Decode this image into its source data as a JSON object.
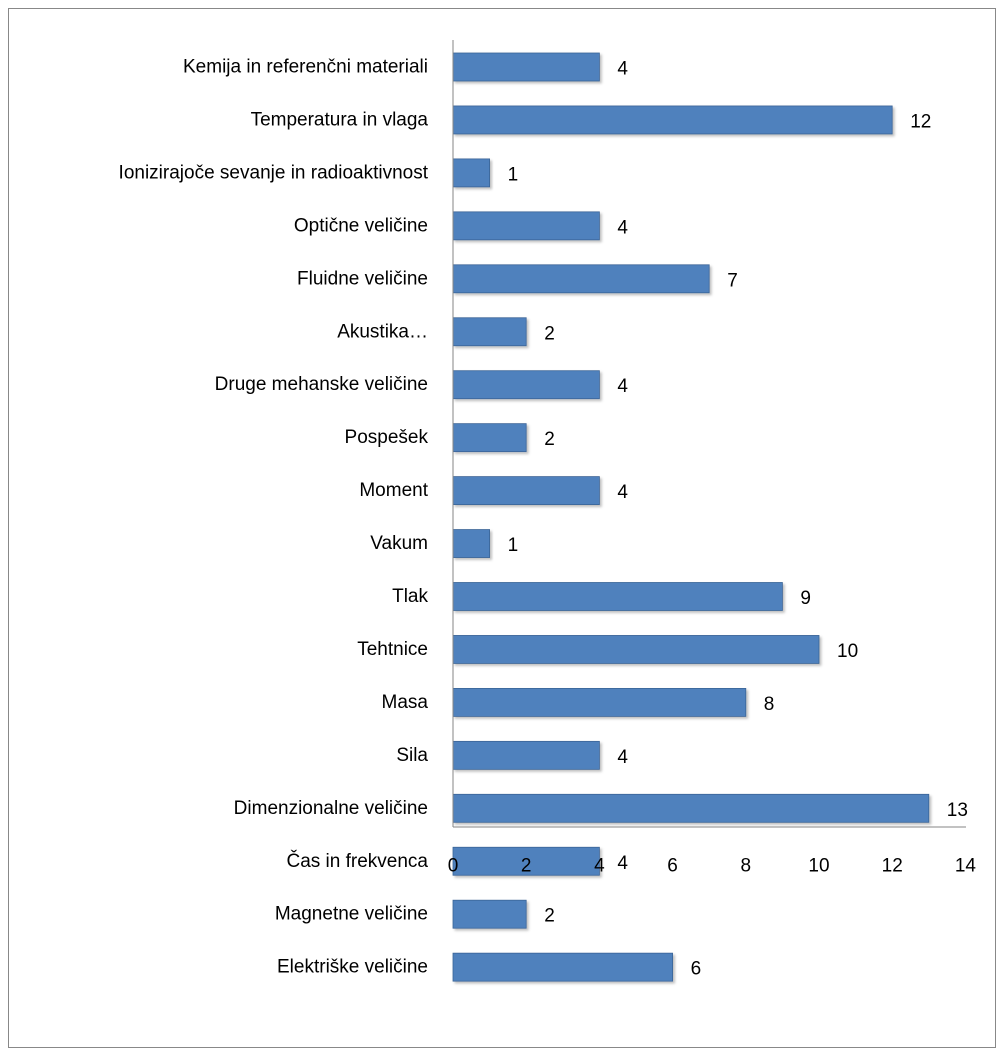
{
  "chart_data": {
    "type": "bar",
    "orientation": "horizontal",
    "title": "",
    "xlabel": "",
    "ylabel": "",
    "categories": [
      "Kemija in referenčni materiali",
      "Temperatura in vlaga",
      "Ionizirajoče sevanje in radioaktivnost",
      "Optične veličine",
      "Fluidne veličine",
      "Akustika…",
      "Druge mehanske veličine",
      "Pospešek",
      "Moment",
      "Vakum",
      "Tlak",
      "Tehtnice",
      "Masa",
      "Sila",
      "Dimenzionalne veličine",
      "Čas in frekvenca",
      "Magnetne veličine",
      "Elektriške veličine"
    ],
    "values": [
      4,
      12,
      1,
      4,
      7,
      2,
      4,
      2,
      4,
      1,
      9,
      10,
      8,
      4,
      13,
      4,
      2,
      6
    ],
    "xlim": [
      0,
      14
    ],
    "xticks": [
      0,
      2,
      4,
      6,
      8,
      10,
      12,
      14
    ],
    "grid": false,
    "legend": "none",
    "bar_color": "#4F81BD",
    "bar_edge_color": "#3A6496"
  }
}
